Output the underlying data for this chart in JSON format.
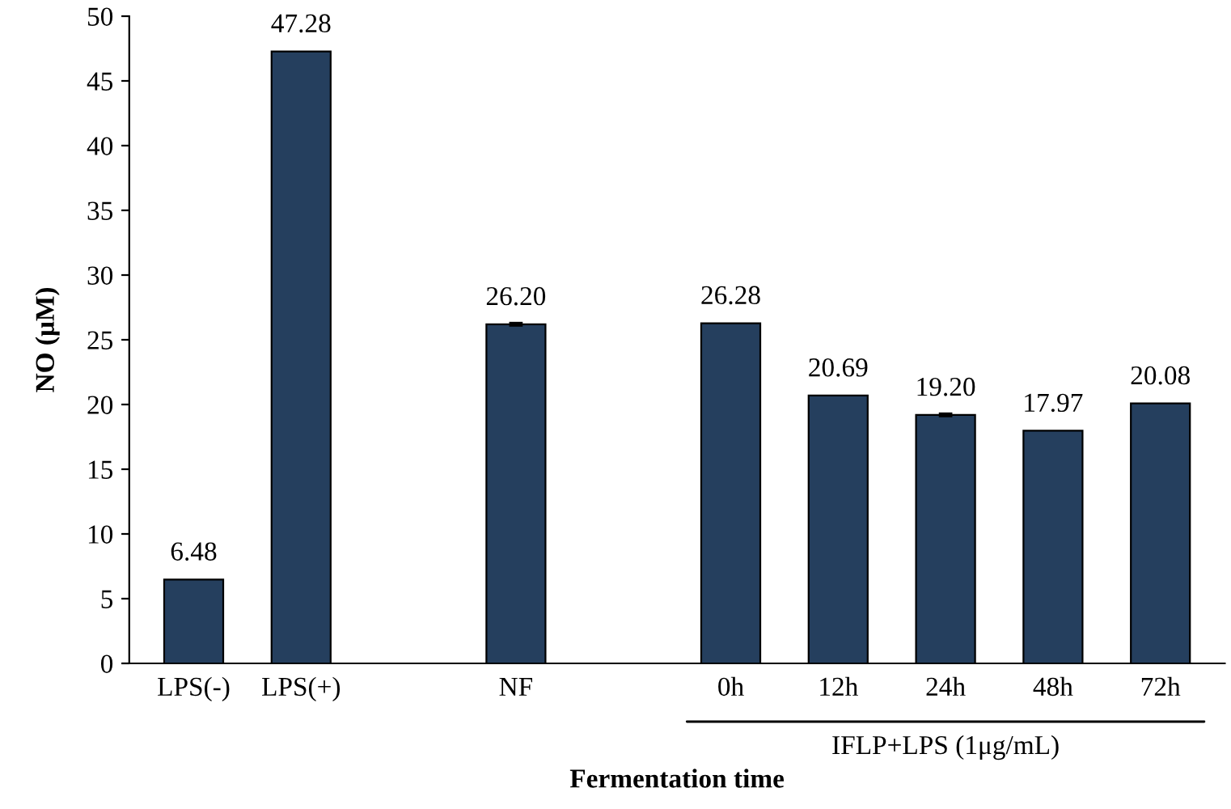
{
  "chart_data": {
    "type": "bar",
    "xlabel": "Fermentation time",
    "ylabel": "NO (μM)",
    "categories": [
      "LPS(-)",
      "LPS(+)",
      null,
      "NF",
      null,
      "0h",
      "12h",
      "24h",
      "48h",
      "72h"
    ],
    "values": [
      6.48,
      47.28,
      null,
      26.2,
      null,
      26.28,
      20.69,
      19.2,
      17.97,
      20.08
    ],
    "value_labels": [
      "6.48",
      "47.28",
      null,
      "26.20",
      null,
      "26.28",
      "20.69",
      "19.20",
      "17.97",
      "20.08"
    ],
    "errors": [
      null,
      null,
      null,
      0.1,
      null,
      null,
      null,
      0.1,
      null,
      null
    ],
    "color": "#253f5e",
    "ylim": [
      0,
      50
    ],
    "yticks": [
      0,
      5,
      10,
      15,
      20,
      25,
      30,
      35,
      40,
      45,
      50
    ],
    "grid": false,
    "legend": false,
    "annotations": [
      "IFLP+LPS (1μg/mL)"
    ]
  }
}
